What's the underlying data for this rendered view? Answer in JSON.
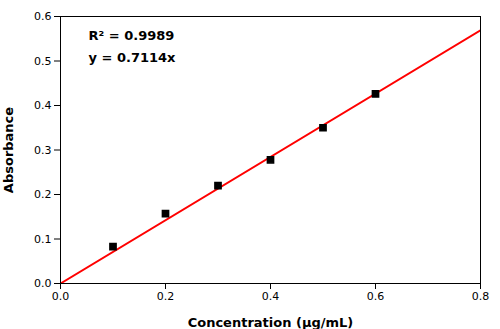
{
  "chart_data": {
    "type": "scatter",
    "xlabel": "Concentration (μg/mL)",
    "ylabel": "Absorbance",
    "xlim": [
      0.0,
      0.8
    ],
    "ylim": [
      0.0,
      0.6
    ],
    "xticks": [
      {
        "value": 0.0,
        "label": "0.0"
      },
      0.2,
      0.4,
      0.6,
      0.8
    ],
    "yticks": [
      {
        "value": 0.0,
        "label": "0.0"
      },
      0.1,
      0.2,
      0.3,
      0.4,
      0.5,
      0.6
    ],
    "annotations": [
      "R² = 0.9989",
      "y = 0.7114x"
    ],
    "series": [
      {
        "type": "scatter",
        "color": "#000000",
        "marker": "square",
        "x": [
          0.1,
          0.2,
          0.3,
          0.4,
          0.5,
          0.6
        ],
        "values": [
          0.083,
          0.157,
          0.22,
          0.278,
          0.35,
          0.426
        ]
      },
      {
        "type": "line",
        "color": "#FF0000",
        "x": [
          0.0,
          0.8
        ],
        "values": [
          0.0,
          0.56912
        ]
      }
    ]
  }
}
